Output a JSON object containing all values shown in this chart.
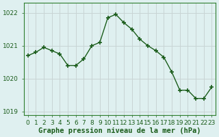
{
  "x": [
    0,
    1,
    2,
    3,
    4,
    5,
    6,
    7,
    8,
    9,
    10,
    11,
    12,
    13,
    14,
    15,
    16,
    17,
    18,
    19,
    20,
    21,
    22,
    23
  ],
  "y": [
    1020.7,
    1020.8,
    1020.95,
    1020.85,
    1020.75,
    1020.4,
    1020.4,
    1020.6,
    1021.0,
    1021.1,
    1021.85,
    1021.95,
    1021.7,
    1021.5,
    1021.2,
    1021.0,
    1020.85,
    1020.65,
    1020.2,
    1019.65,
    1019.65,
    1019.4,
    1019.4,
    1019.75
  ],
  "line_color": "#1a5c1a",
  "marker": "+",
  "marker_size": 5,
  "bg_color": "#dff0f0",
  "vgrid_color": "#c8d4d4",
  "hgrid_color": "#c8d4d4",
  "xlabel": "Graphe pression niveau de la mer (hPa)",
  "xlabel_color": "#1a5c1a",
  "tick_color": "#1a5c1a",
  "axis_color": "#1a5c1a",
  "ylim": [
    1018.9,
    1022.3
  ],
  "xlim": [
    -0.5,
    23.5
  ],
  "yticks": [
    1019,
    1020,
    1021,
    1022
  ],
  "xtick_labels": [
    "0",
    "1",
    "2",
    "3",
    "4",
    "5",
    "6",
    "7",
    "8",
    "9",
    "10",
    "11",
    "12",
    "13",
    "14",
    "15",
    "16",
    "17",
    "18",
    "19",
    "20",
    "21",
    "22",
    "23"
  ],
  "font_size_ticks": 6.5,
  "font_size_xlabel": 7.5,
  "linewidth": 1.0,
  "border_color": "#2d7d2d"
}
